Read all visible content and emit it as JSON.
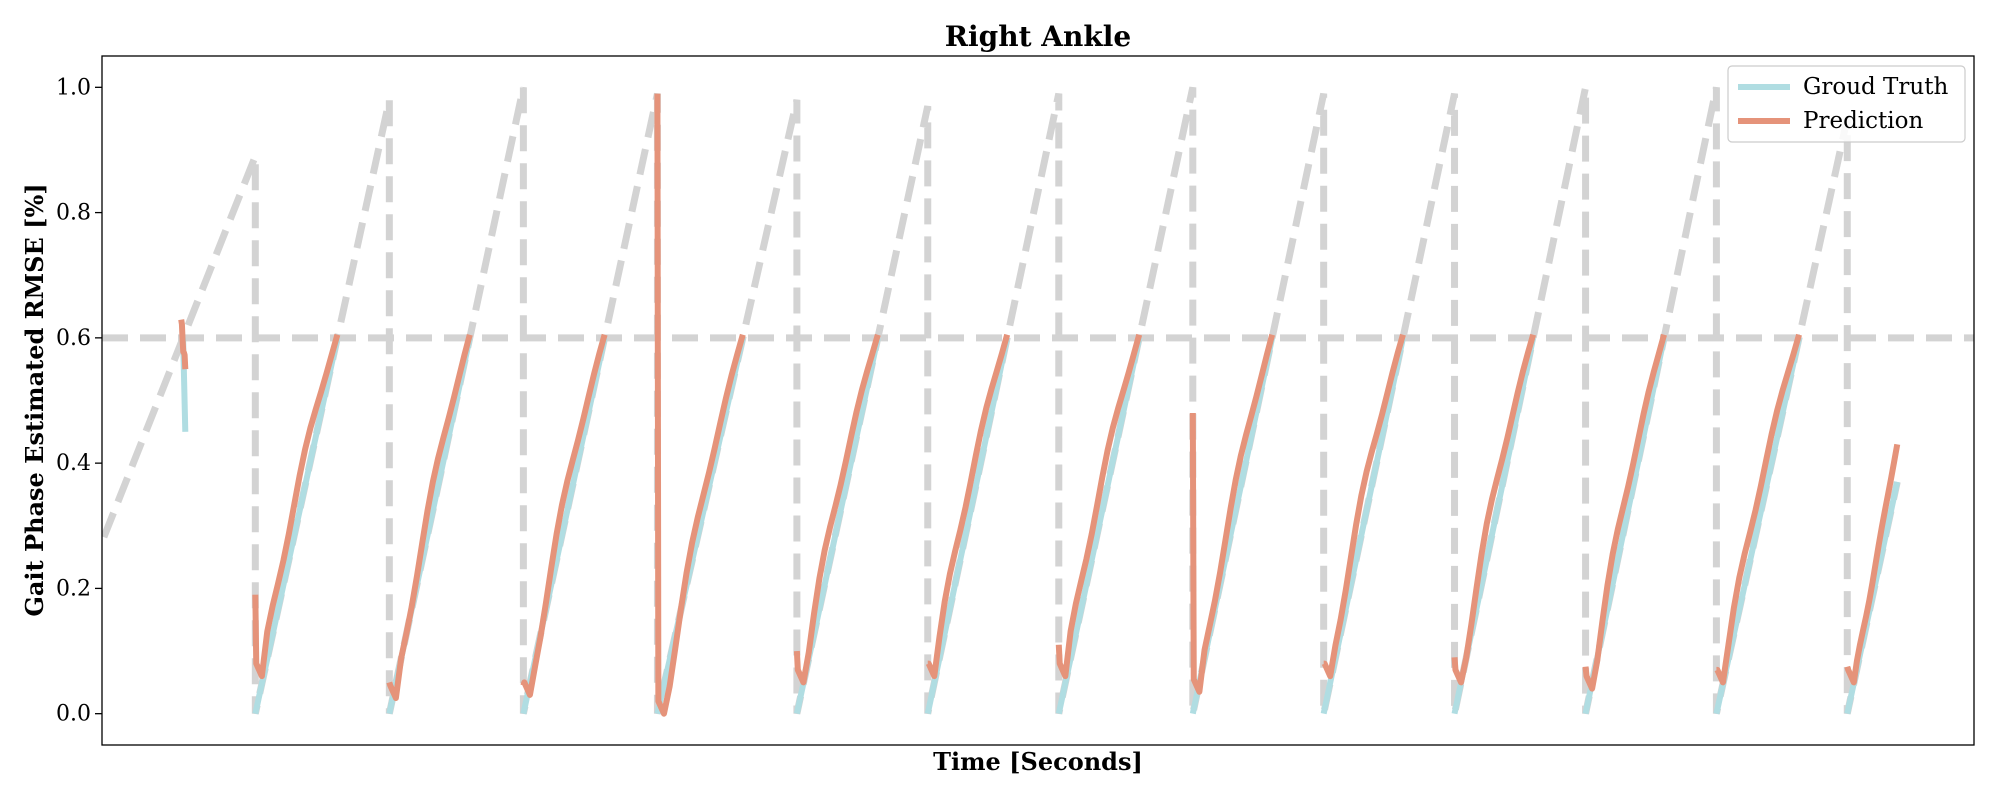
{
  "chart_data": {
    "type": "line",
    "title": "Right Ankle",
    "xlabel": "Time [Seconds]",
    "ylabel": "Gait Phase Estimated RMSE [%]",
    "ylim": [
      -0.05,
      1.05
    ],
    "xlim": [
      0,
      100
    ],
    "yticks": [
      0.0,
      0.2,
      0.4,
      0.6,
      0.8,
      1.0
    ],
    "ytick_labels": [
      "0.0",
      "0.2",
      "0.4",
      "0.6",
      "0.8",
      "1.0"
    ],
    "grid": false,
    "legend": "top-right",
    "colors": {
      "ground_truth": "#b0dde2",
      "prediction": "#e5937a",
      "reference": "#d3d3d3"
    },
    "reference_line": {
      "y": 0.6
    },
    "cycles": [
      {
        "x_start": -3.65,
        "x_end": 8.19,
        "y_peak": 0.89,
        "pred_start": null,
        "pred_min": null
      },
      {
        "x_start": 8.19,
        "x_end": 15.35,
        "y_peak": 0.98,
        "pred_start": 0.19,
        "pred_min": 0.06
      },
      {
        "x_start": 15.35,
        "x_end": 22.51,
        "y_peak": 1.0,
        "pred_start": 0.05,
        "pred_min": 0.025
      },
      {
        "x_start": 22.51,
        "x_end": 29.67,
        "y_peak": 0.99,
        "pred_start": 0.045,
        "pred_min": 0.03
      },
      {
        "x_start": 29.67,
        "x_end": 37.12,
        "y_peak": 0.98,
        "pred_start": 0.99,
        "pred_min": 0.0
      },
      {
        "x_start": 37.12,
        "x_end": 44.11,
        "y_peak": 0.97,
        "pred_start": 0.1,
        "pred_min": 0.05
      },
      {
        "x_start": 44.11,
        "x_end": 51.11,
        "y_peak": 0.99,
        "pred_start": 0.08,
        "pred_min": 0.06
      },
      {
        "x_start": 51.11,
        "x_end": 58.27,
        "y_peak": 1.0,
        "pred_start": 0.11,
        "pred_min": 0.06
      },
      {
        "x_start": 58.27,
        "x_end": 65.26,
        "y_peak": 0.99,
        "pred_start": 0.48,
        "pred_min": 0.035
      },
      {
        "x_start": 65.26,
        "x_end": 72.25,
        "y_peak": 0.99,
        "pred_start": 0.08,
        "pred_min": 0.06
      },
      {
        "x_start": 72.25,
        "x_end": 79.25,
        "y_peak": 1.0,
        "pred_start": 0.09,
        "pred_min": 0.05
      },
      {
        "x_start": 79.25,
        "x_end": 86.24,
        "y_peak": 1.0,
        "pred_start": 0.075,
        "pred_min": 0.04
      },
      {
        "x_start": 86.24,
        "x_end": 93.23,
        "y_peak": 0.95,
        "pred_start": 0.07,
        "pred_min": 0.05
      },
      {
        "x_start": 93.23,
        "x_end": 100.22,
        "y_peak": null,
        "pred_start": 0.075,
        "pred_min": 0.05
      }
    ],
    "series": [
      {
        "name": "Groud Truth"
      },
      {
        "name": "Prediction"
      }
    ],
    "first_segment": {
      "x_start": 4.45,
      "gt_start": 0.45,
      "pred_start": 0.55,
      "x_end": 5.74
    },
    "last_segment": {
      "x_end": 95.9,
      "gt_end": 0.37,
      "pred_end": 0.43
    }
  }
}
